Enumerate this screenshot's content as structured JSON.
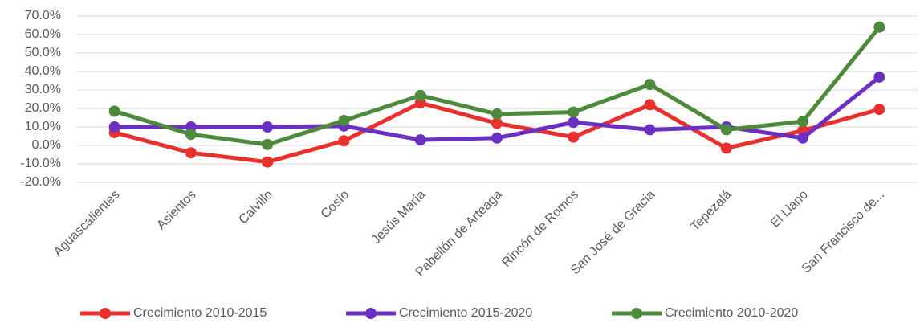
{
  "chart_data": {
    "type": "line",
    "categories": [
      "Aguascalientes",
      "Asientos",
      "Calvillo",
      "Cosío",
      "Jesús María",
      "Pabellón de Arteaga",
      "Rincón de Romos",
      "San José de Gracia",
      "Tepezalá",
      "El Llano",
      "San Francisco de..."
    ],
    "series": [
      {
        "name": "Crecimiento 2010-2015",
        "color": "#e8302c",
        "values": [
          7,
          -4,
          -9,
          2.5,
          23,
          12,
          4.5,
          22,
          -1.5,
          8,
          19.5
        ]
      },
      {
        "name": "Crecimiento 2015-2020",
        "color": "#6b2fc4",
        "values": [
          10,
          10,
          10,
          10.5,
          3,
          4,
          12.5,
          8.5,
          10,
          4,
          37
        ]
      },
      {
        "name": "Crecimiento 2010-2020",
        "color": "#4d8a3b",
        "values": [
          18.5,
          6,
          0.5,
          13.5,
          27,
          17,
          18,
          33,
          8.5,
          13,
          64
        ]
      }
    ],
    "ylim": [
      -20,
      70
    ],
    "yticks": [
      {
        "value": -20,
        "label": "-20.0%"
      },
      {
        "value": -10,
        "label": "-10.0%"
      },
      {
        "value": 0,
        "label": "0.0%"
      },
      {
        "value": 10,
        "label": "10.0%"
      },
      {
        "value": 20,
        "label": "20.0%"
      },
      {
        "value": 30,
        "label": "30.0%"
      },
      {
        "value": 40,
        "label": "40.0%"
      },
      {
        "value": 50,
        "label": "50.0%"
      },
      {
        "value": 60,
        "label": "60.0%"
      },
      {
        "value": 70,
        "label": "70.0%"
      }
    ],
    "grid": true,
    "legend": "bottom"
  }
}
